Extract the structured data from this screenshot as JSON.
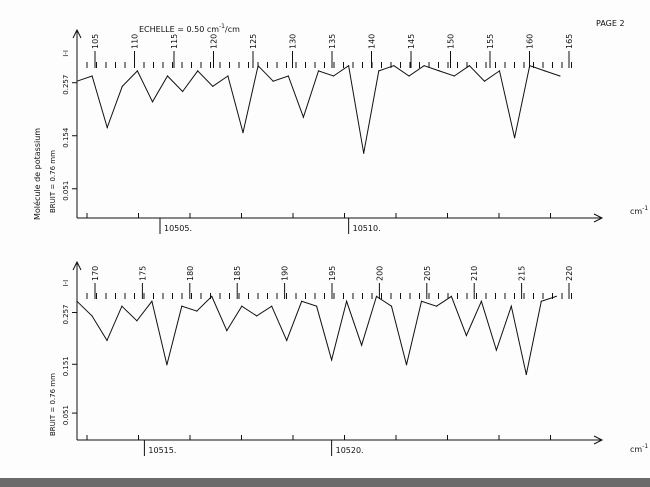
{
  "header": {
    "scale_label": "ECHELLE = 0.50 cm",
    "scale_exp": "-1",
    "scale_suffix": "/cm",
    "page": "PAGE 2"
  },
  "side_title": "Molécule de potassium",
  "chart_data": [
    {
      "type": "line",
      "panel": "top",
      "x_unit_label": "cm",
      "x_unit_exp": "-1",
      "x_ticks": [
        {
          "value": 10505,
          "label": "10505."
        },
        {
          "value": 10510,
          "label": "10510."
        }
      ],
      "xlim": [
        10502.8,
        10516.0
      ],
      "y_axis_labels": [
        "BRUIT = 0.76 mm",
        "0.051",
        "0.154",
        "0.257",
        "I-I"
      ],
      "y_ticks": [
        0.051,
        0.154,
        0.257
      ],
      "ylim": [
        0.0,
        0.34
      ],
      "line_numbers": [
        "105",
        "110",
        "115",
        "120",
        "125",
        "130",
        "135",
        "140",
        "145",
        "150",
        "155",
        "160",
        "165"
      ],
      "x": [
        10502.8,
        10503.2,
        10503.6,
        10504.0,
        10504.4,
        10504.8,
        10505.2,
        10505.6,
        10506.0,
        10506.4,
        10506.8,
        10507.2,
        10507.6,
        10508.0,
        10508.4,
        10508.8,
        10509.2,
        10509.6,
        10510.0,
        10510.4,
        10510.8,
        10511.2,
        10511.6,
        10512.0,
        10512.4,
        10512.8,
        10513.2,
        10513.6,
        10514.0,
        10514.4,
        10514.8,
        10515.2,
        10515.6
      ],
      "y": [
        0.26,
        0.27,
        0.17,
        0.25,
        0.28,
        0.22,
        0.27,
        0.24,
        0.28,
        0.25,
        0.27,
        0.16,
        0.29,
        0.26,
        0.27,
        0.19,
        0.28,
        0.27,
        0.29,
        0.12,
        0.28,
        0.29,
        0.27,
        0.29,
        0.28,
        0.27,
        0.29,
        0.26,
        0.28,
        0.15,
        0.29,
        0.28,
        0.27
      ]
    },
    {
      "type": "line",
      "panel": "bottom",
      "x_unit_label": "cm",
      "x_unit_exp": "-1",
      "x_ticks": [
        {
          "value": 10515,
          "label": "10515."
        },
        {
          "value": 10520,
          "label": "10520."
        }
      ],
      "xlim": [
        10513.2,
        10526.5
      ],
      "y_axis_labels": [
        "BRUIT = 0.76 mm",
        "0.051",
        "0.151",
        "0.257",
        "I-I"
      ],
      "y_ticks": [
        0.051,
        0.151,
        0.257
      ],
      "ylim": [
        0.0,
        0.34
      ],
      "line_numbers": [
        "170",
        "175",
        "180",
        "185",
        "190",
        "195",
        "200",
        "205",
        "210",
        "215",
        "220"
      ],
      "x": [
        10513.2,
        10513.6,
        10514.0,
        10514.4,
        10514.8,
        10515.2,
        10515.6,
        10516.0,
        10516.4,
        10516.8,
        10517.2,
        10517.6,
        10518.0,
        10518.4,
        10518.8,
        10519.2,
        10519.6,
        10520.0,
        10520.4,
        10520.8,
        10521.2,
        10521.6,
        10522.0,
        10522.4,
        10522.8,
        10523.2,
        10523.6,
        10524.0,
        10524.4,
        10524.8,
        10525.2,
        10525.6,
        10526.0
      ],
      "y": [
        0.28,
        0.25,
        0.2,
        0.27,
        0.24,
        0.28,
        0.15,
        0.27,
        0.26,
        0.29,
        0.22,
        0.27,
        0.25,
        0.27,
        0.2,
        0.28,
        0.27,
        0.16,
        0.28,
        0.19,
        0.29,
        0.27,
        0.15,
        0.28,
        0.27,
        0.29,
        0.21,
        0.28,
        0.18,
        0.27,
        0.13,
        0.28,
        0.29
      ]
    }
  ]
}
